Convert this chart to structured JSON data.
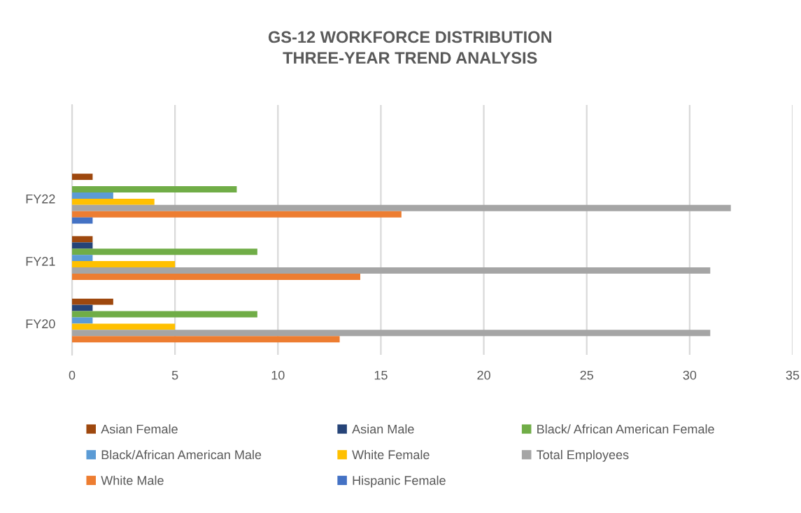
{
  "chart_data": {
    "type": "bar",
    "orientation": "horizontal",
    "title": "GS-12 WORKFORCE DISTRIBUTION\nTHREE-YEAR TREND ANALYSIS",
    "categories": [
      null,
      "FY22",
      "FY21",
      "FY20"
    ],
    "series": [
      {
        "name": "Asian Female",
        "color": "#9e480e",
        "values": [
          null,
          1,
          1,
          2
        ]
      },
      {
        "name": "Asian Male",
        "color": "#264478",
        "values": [
          null,
          null,
          1,
          1
        ]
      },
      {
        "name": "Black/ African American Female",
        "color": "#70ad47",
        "values": [
          null,
          8,
          9,
          9
        ]
      },
      {
        "name": "Black/African American Male",
        "color": "#5b9bd5",
        "values": [
          null,
          2,
          1,
          1
        ]
      },
      {
        "name": "White Female",
        "color": "#ffc000",
        "values": [
          null,
          4,
          5,
          5
        ]
      },
      {
        "name": "Total Employees",
        "color": "#a5a5a5",
        "values": [
          null,
          32,
          31,
          31
        ]
      },
      {
        "name": "White Male",
        "color": "#ed7d31",
        "values": [
          null,
          16,
          14,
          13
        ]
      },
      {
        "name": "Hispanic Female",
        "color": "#4472c4",
        "values": [
          null,
          1,
          null,
          null
        ]
      }
    ],
    "xlim": [
      0,
      35
    ],
    "xticks": [
      0,
      5,
      10,
      15,
      20,
      25,
      30,
      35
    ],
    "grid": "x",
    "legend": "bottom"
  }
}
